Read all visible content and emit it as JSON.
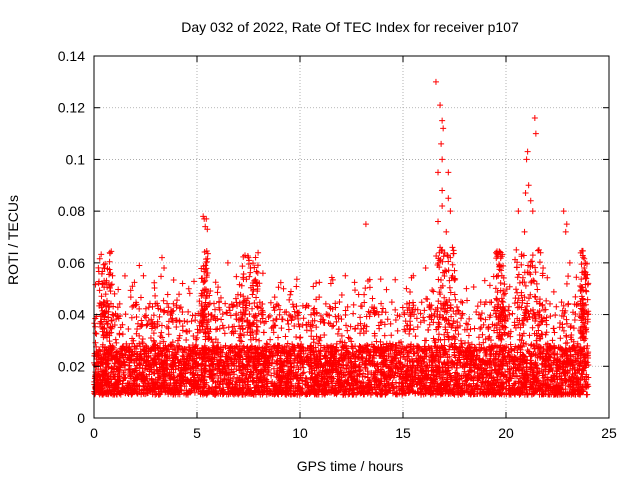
{
  "chart_data": {
    "type": "scatter",
    "title": "Day 032 of 2022, Rate Of TEC Index for receiver p107",
    "xlabel": "GPS time / hours",
    "ylabel": "ROTI / TECUs",
    "xlim": [
      0,
      25
    ],
    "ylim": [
      0,
      0.14
    ],
    "x_ticks": [
      0,
      5,
      10,
      15,
      20,
      25
    ],
    "x_tick_labels": [
      "0",
      "5",
      "10",
      "15",
      "20",
      "25"
    ],
    "y_ticks": [
      0,
      0.02,
      0.04,
      0.06,
      0.08,
      0.1,
      0.12,
      0.14
    ],
    "y_tick_labels": [
      "0",
      "0.02",
      "0.04",
      "0.06",
      "0.08",
      "0.1",
      "0.12",
      "0.14"
    ],
    "grid": true,
    "marker": "+",
    "color": "#ff0000",
    "series": [
      {
        "name": "ROTI",
        "points": [
          [
            0.4,
            0.052
          ],
          [
            0.5,
            0.058
          ],
          [
            0.9,
            0.055
          ],
          [
            1.0,
            0.048
          ],
          [
            2.2,
            0.059
          ],
          [
            2.4,
            0.055
          ],
          [
            3.3,
            0.062
          ],
          [
            3.4,
            0.058
          ],
          [
            4.3,
            0.052
          ],
          [
            4.6,
            0.05
          ],
          [
            5.3,
            0.078
          ],
          [
            5.35,
            0.077
          ],
          [
            5.4,
            0.074
          ],
          [
            5.45,
            0.077
          ],
          [
            5.5,
            0.073
          ],
          [
            6.5,
            0.06
          ],
          [
            7.5,
            0.062
          ],
          [
            7.6,
            0.058
          ],
          [
            8.2,
            0.056
          ],
          [
            9.2,
            0.05
          ],
          [
            11.5,
            0.052
          ],
          [
            12.2,
            0.055
          ],
          [
            13.2,
            0.075
          ],
          [
            13.3,
            0.053
          ],
          [
            15.5,
            0.055
          ],
          [
            16.1,
            0.058
          ],
          [
            16.6,
            0.13
          ],
          [
            16.8,
            0.121
          ],
          [
            16.9,
            0.115
          ],
          [
            16.95,
            0.112
          ],
          [
            16.85,
            0.106
          ],
          [
            16.9,
            0.1
          ],
          [
            16.7,
            0.095
          ],
          [
            17.2,
            0.095
          ],
          [
            16.9,
            0.088
          ],
          [
            17.2,
            0.085
          ],
          [
            16.9,
            0.082
          ],
          [
            17.3,
            0.08
          ],
          [
            16.7,
            0.076
          ],
          [
            17.1,
            0.072
          ],
          [
            16.8,
            0.066
          ],
          [
            16.9,
            0.065
          ],
          [
            17.4,
            0.066
          ],
          [
            17.3,
            0.062
          ],
          [
            17.5,
            0.057
          ],
          [
            19.7,
            0.059
          ],
          [
            19.8,
            0.055
          ],
          [
            20.5,
            0.065
          ],
          [
            20.6,
            0.08
          ],
          [
            20.9,
            0.072
          ],
          [
            20.95,
            0.087
          ],
          [
            21.0,
            0.1
          ],
          [
            21.05,
            0.103
          ],
          [
            21.1,
            0.09
          ],
          [
            21.2,
            0.084
          ],
          [
            21.4,
            0.116
          ],
          [
            21.45,
            0.11
          ],
          [
            21.3,
            0.08
          ],
          [
            21.6,
            0.065
          ],
          [
            21.8,
            0.058
          ],
          [
            22.8,
            0.08
          ],
          [
            22.9,
            0.072
          ],
          [
            22.95,
            0.075
          ],
          [
            23.1,
            0.06
          ],
          [
            23.8,
            0.058
          ],
          [
            23.9,
            0.054
          ]
        ],
        "background_band": {
          "x_range": [
            0,
            24
          ],
          "typical_range": [
            0.005,
            0.03
          ],
          "note": "dense red + markers covering 0–24 h, roughly 0.005–0.03 TECU with bursts to ~0.04–0.06"
        }
      }
    ]
  }
}
